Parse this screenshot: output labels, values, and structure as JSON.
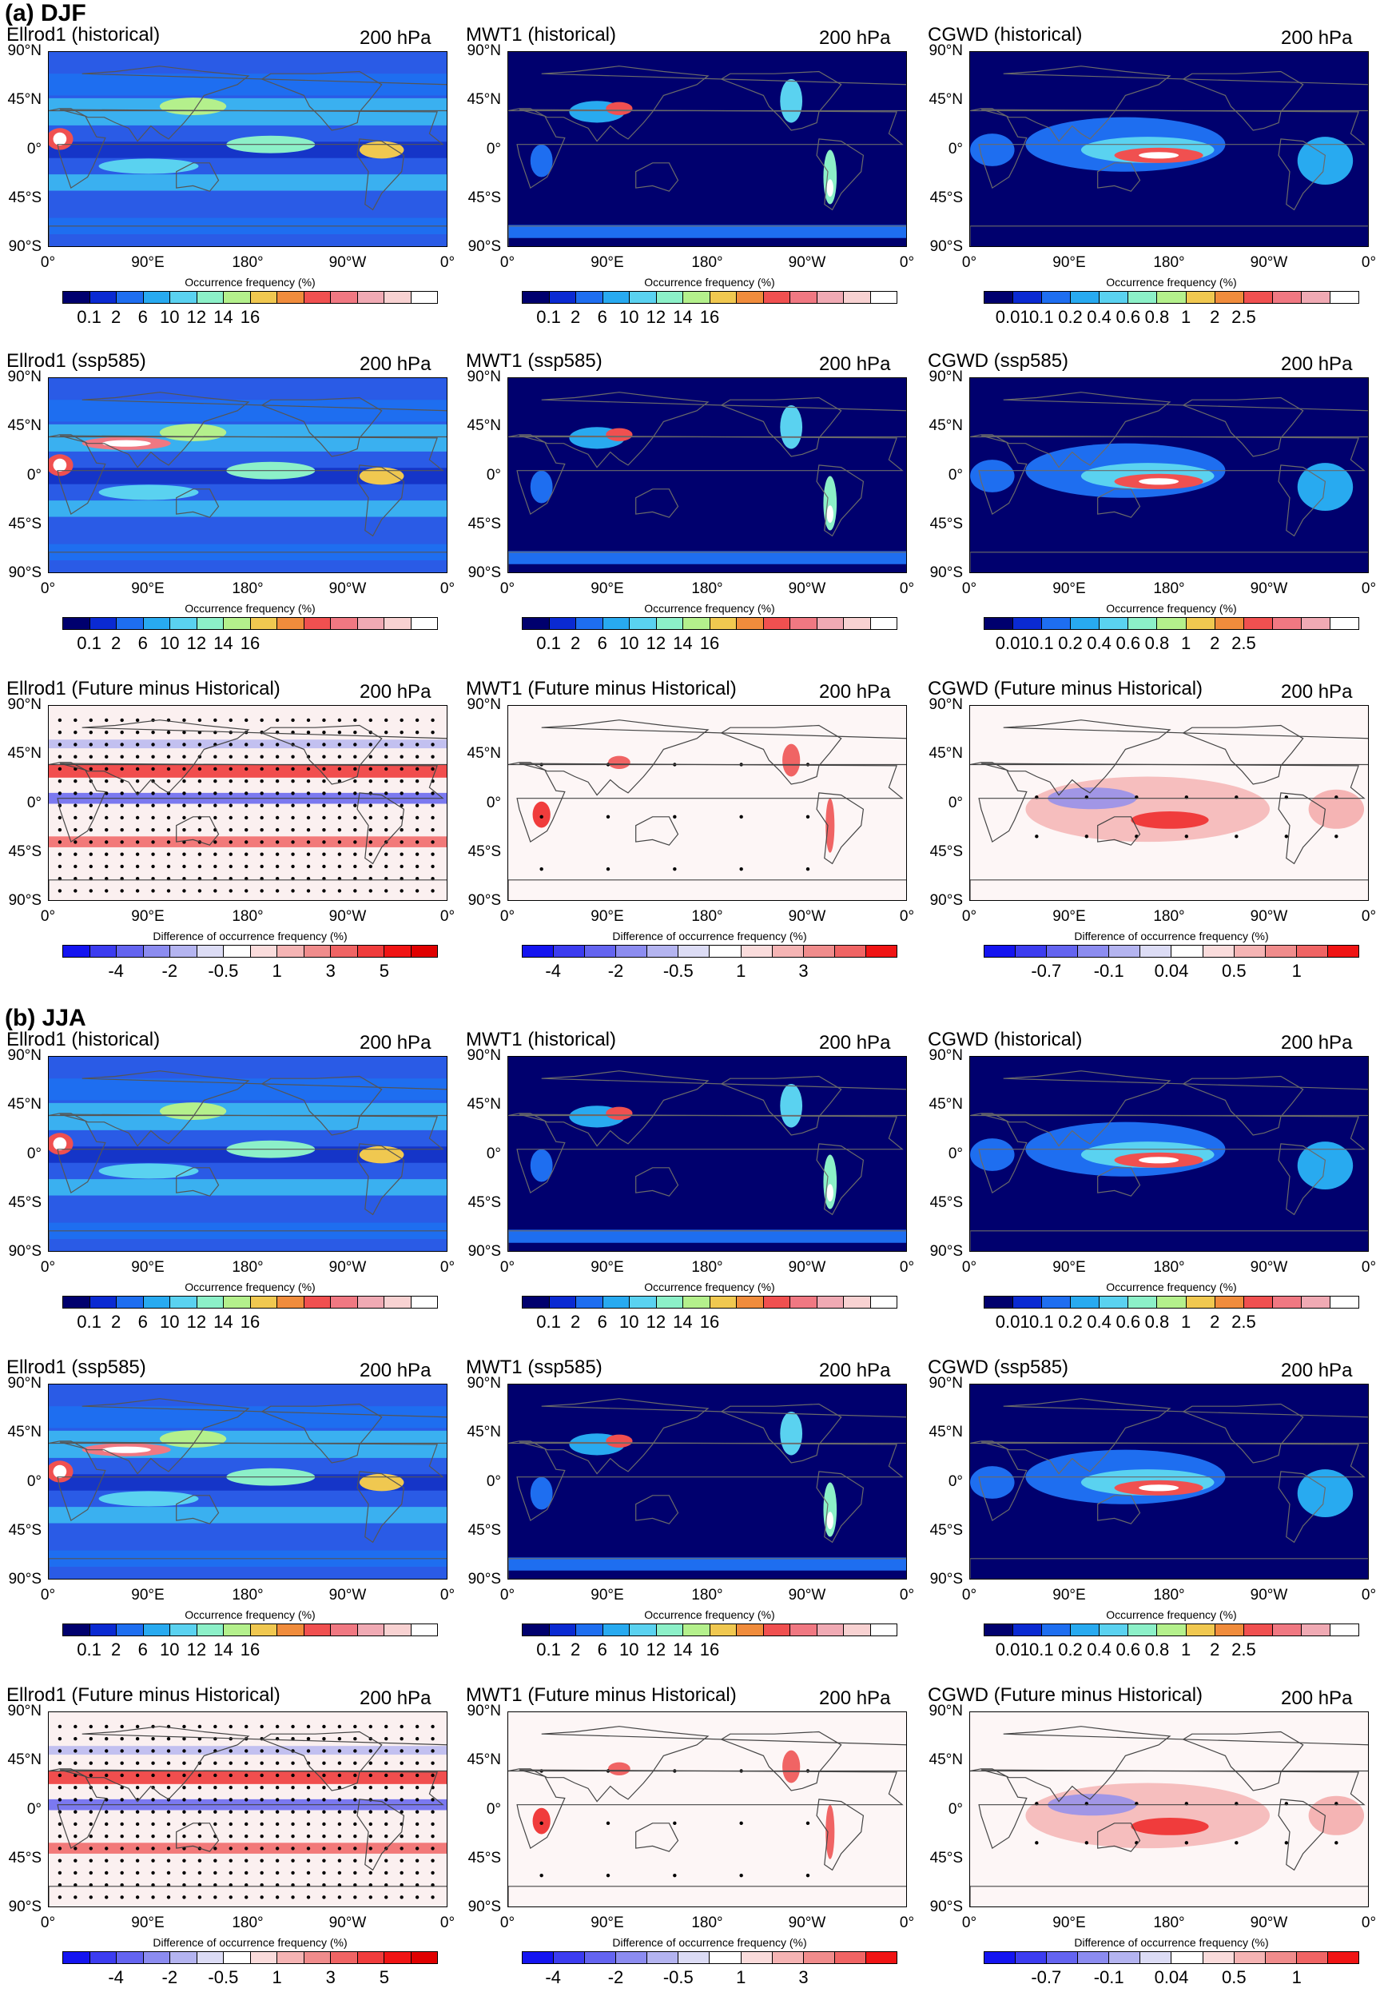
{
  "sections": [
    {
      "title": "(a) DJF"
    },
    {
      "title": "(b) JJA"
    }
  ],
  "panel_titles": {
    "hist": [
      "Ellrod1 (historical)",
      "MWT1 (historical)",
      "CGWD (historical)"
    ],
    "ssp": [
      "Ellrod1 (ssp585)",
      "MWT1 (ssp585)",
      "CGWD (ssp585)"
    ],
    "diff": [
      "Ellrod1 (Future minus Historical)",
      "MWT1 (Future minus Historical)",
      "CGWD (Future minus Historical)"
    ]
  },
  "pressure_level": "200 hPa",
  "lat_labels": [
    "90°N",
    "45°N",
    "0°",
    "45°S",
    "90°S"
  ],
  "lon_labels": [
    "0°",
    "90°E",
    "180°",
    "90°W",
    "0°"
  ],
  "colorbars": {
    "freq": {
      "title": "Occurrence frequency (%)",
      "colors": [
        "#00006e",
        "#0a2ad2",
        "#1e6ef0",
        "#28aaf0",
        "#5ad2f0",
        "#8cf0c8",
        "#b4f08c",
        "#f0c850",
        "#f08c3c",
        "#f05050",
        "#f07882",
        "#f0aab4",
        "#f8d2d2",
        "#ffffff"
      ],
      "ticks": [
        "0.1",
        "2",
        "6",
        "10",
        "12",
        "14",
        "16"
      ],
      "tick_index": [
        1,
        2,
        3,
        4,
        5,
        6,
        7
      ]
    },
    "cgwd": {
      "title": "Occurrence frequency (%)",
      "colors": [
        "#00006e",
        "#0a2ad2",
        "#1e6ef0",
        "#28aaf0",
        "#5ad2f0",
        "#8cf0c8",
        "#b4f08c",
        "#f0c850",
        "#f08c3c",
        "#f05050",
        "#f07882",
        "#f0aab4",
        "#ffffff"
      ],
      "ticks": [
        "0.01",
        "0.1",
        "0.2",
        "0.4",
        "0.6",
        "0.8",
        "1",
        "2",
        "2.5"
      ],
      "tick_index": [
        1,
        2,
        3,
        4,
        5,
        6,
        7,
        8,
        9
      ]
    },
    "diff_ell": {
      "title": "Difference of occurrence frequency (%)",
      "colors": [
        "#1414f0",
        "#3c3cf0",
        "#6464f0",
        "#8c8cf0",
        "#b4b4f0",
        "#dcdcf5",
        "#ffffff",
        "#fadcdc",
        "#f5b4b4",
        "#f08c8c",
        "#f06464",
        "#f03c3c",
        "#f01414",
        "#e00000"
      ],
      "ticks": [
        "-4",
        "-2",
        "-0.5",
        "1",
        "3",
        "5"
      ],
      "tick_index": [
        2,
        4,
        6,
        8,
        10,
        12
      ]
    },
    "diff_mwt": {
      "title": "Difference of occurrence frequency (%)",
      "colors": [
        "#1414f0",
        "#3c3cf0",
        "#6464f0",
        "#8c8cf0",
        "#b4b4f0",
        "#dcdcf5",
        "#ffffff",
        "#fadcdc",
        "#f5b4b4",
        "#f08c8c",
        "#f06464",
        "#f01414"
      ],
      "ticks": [
        "-4",
        "-2",
        "-0.5",
        "1",
        "3"
      ],
      "tick_index": [
        1,
        3,
        5,
        7,
        9
      ]
    },
    "diff_cgwd": {
      "title": "Difference of occurrence frequency (%)",
      "colors": [
        "#1414f0",
        "#3c3cf0",
        "#6464f0",
        "#8c8cf0",
        "#b4b4f0",
        "#dcdcf5",
        "#ffffff",
        "#fadcdc",
        "#f5b4b4",
        "#f08c8c",
        "#f06464",
        "#f01414"
      ],
      "ticks": [
        "-0.7",
        "-0.1",
        "0.04",
        "0.5",
        "1"
      ],
      "tick_index": [
        2,
        4,
        6,
        8,
        10
      ]
    }
  },
  "chart_data": [
    {
      "season": "DJF",
      "type": "heatmap",
      "title": "Ellrod1 (historical)",
      "level": "200 hPa",
      "colorbar": "freq",
      "pattern": "ellrod_hist",
      "xlim": [
        0,
        360
      ],
      "ylim": [
        -90,
        90
      ]
    },
    {
      "season": "DJF",
      "type": "heatmap",
      "title": "MWT1 (historical)",
      "level": "200 hPa",
      "colorbar": "freq",
      "pattern": "mwt",
      "xlim": [
        0,
        360
      ],
      "ylim": [
        -90,
        90
      ]
    },
    {
      "season": "DJF",
      "type": "heatmap",
      "title": "CGWD (historical)",
      "level": "200 hPa",
      "colorbar": "cgwd",
      "pattern": "cgwd",
      "xlim": [
        0,
        360
      ],
      "ylim": [
        -90,
        90
      ]
    },
    {
      "season": "DJF",
      "type": "heatmap",
      "title": "Ellrod1 (ssp585)",
      "level": "200 hPa",
      "colorbar": "freq",
      "pattern": "ellrod_ssp",
      "xlim": [
        0,
        360
      ],
      "ylim": [
        -90,
        90
      ]
    },
    {
      "season": "DJF",
      "type": "heatmap",
      "title": "MWT1 (ssp585)",
      "level": "200 hPa",
      "colorbar": "freq",
      "pattern": "mwt",
      "xlim": [
        0,
        360
      ],
      "ylim": [
        -90,
        90
      ]
    },
    {
      "season": "DJF",
      "type": "heatmap",
      "title": "CGWD (ssp585)",
      "level": "200 hPa",
      "colorbar": "cgwd",
      "pattern": "cgwd",
      "xlim": [
        0,
        360
      ],
      "ylim": [
        -90,
        90
      ]
    },
    {
      "season": "DJF",
      "type": "heatmap",
      "title": "Ellrod1 (Future minus Historical)",
      "level": "200 hPa",
      "colorbar": "diff_ell",
      "pattern": "diff_ellrod",
      "xlim": [
        0,
        360
      ],
      "ylim": [
        -90,
        90
      ]
    },
    {
      "season": "DJF",
      "type": "heatmap",
      "title": "MWT1 (Future minus Historical)",
      "level": "200 hPa",
      "colorbar": "diff_mwt",
      "pattern": "diff_mwt",
      "xlim": [
        0,
        360
      ],
      "ylim": [
        -90,
        90
      ]
    },
    {
      "season": "DJF",
      "type": "heatmap",
      "title": "CGWD (Future minus Historical)",
      "level": "200 hPa",
      "colorbar": "diff_cgwd",
      "pattern": "diff_cgwd",
      "xlim": [
        0,
        360
      ],
      "ylim": [
        -90,
        90
      ]
    },
    {
      "season": "JJA",
      "type": "heatmap",
      "title": "Ellrod1 (historical)",
      "level": "200 hPa",
      "colorbar": "freq",
      "pattern": "ellrod_hist",
      "xlim": [
        0,
        360
      ],
      "ylim": [
        -90,
        90
      ]
    },
    {
      "season": "JJA",
      "type": "heatmap",
      "title": "MWT1 (historical)",
      "level": "200 hPa",
      "colorbar": "freq",
      "pattern": "mwt",
      "xlim": [
        0,
        360
      ],
      "ylim": [
        -90,
        90
      ]
    },
    {
      "season": "JJA",
      "type": "heatmap",
      "title": "CGWD (historical)",
      "level": "200 hPa",
      "colorbar": "cgwd",
      "pattern": "cgwd",
      "xlim": [
        0,
        360
      ],
      "ylim": [
        -90,
        90
      ]
    },
    {
      "season": "JJA",
      "type": "heatmap",
      "title": "Ellrod1 (ssp585)",
      "level": "200 hPa",
      "colorbar": "freq",
      "pattern": "ellrod_ssp",
      "xlim": [
        0,
        360
      ],
      "ylim": [
        -90,
        90
      ]
    },
    {
      "season": "JJA",
      "type": "heatmap",
      "title": "MWT1 (ssp585)",
      "level": "200 hPa",
      "colorbar": "freq",
      "pattern": "mwt",
      "xlim": [
        0,
        360
      ],
      "ylim": [
        -90,
        90
      ]
    },
    {
      "season": "JJA",
      "type": "heatmap",
      "title": "CGWD (ssp585)",
      "level": "200 hPa",
      "colorbar": "cgwd",
      "pattern": "cgwd",
      "xlim": [
        0,
        360
      ],
      "ylim": [
        -90,
        90
      ]
    },
    {
      "season": "JJA",
      "type": "heatmap",
      "title": "Ellrod1 (Future minus Historical)",
      "level": "200 hPa",
      "colorbar": "diff_ell",
      "pattern": "diff_ellrod",
      "xlim": [
        0,
        360
      ],
      "ylim": [
        -90,
        90
      ]
    },
    {
      "season": "JJA",
      "type": "heatmap",
      "title": "MWT1 (Future minus Historical)",
      "level": "200 hPa",
      "colorbar": "diff_mwt",
      "pattern": "diff_mwt",
      "xlim": [
        0,
        360
      ],
      "ylim": [
        -90,
        90
      ]
    },
    {
      "season": "JJA",
      "type": "heatmap",
      "title": "CGWD (Future minus Historical)",
      "level": "200 hPa",
      "colorbar": "diff_cgwd",
      "pattern": "diff_cgwd",
      "xlim": [
        0,
        360
      ],
      "ylim": [
        -90,
        90
      ]
    }
  ]
}
